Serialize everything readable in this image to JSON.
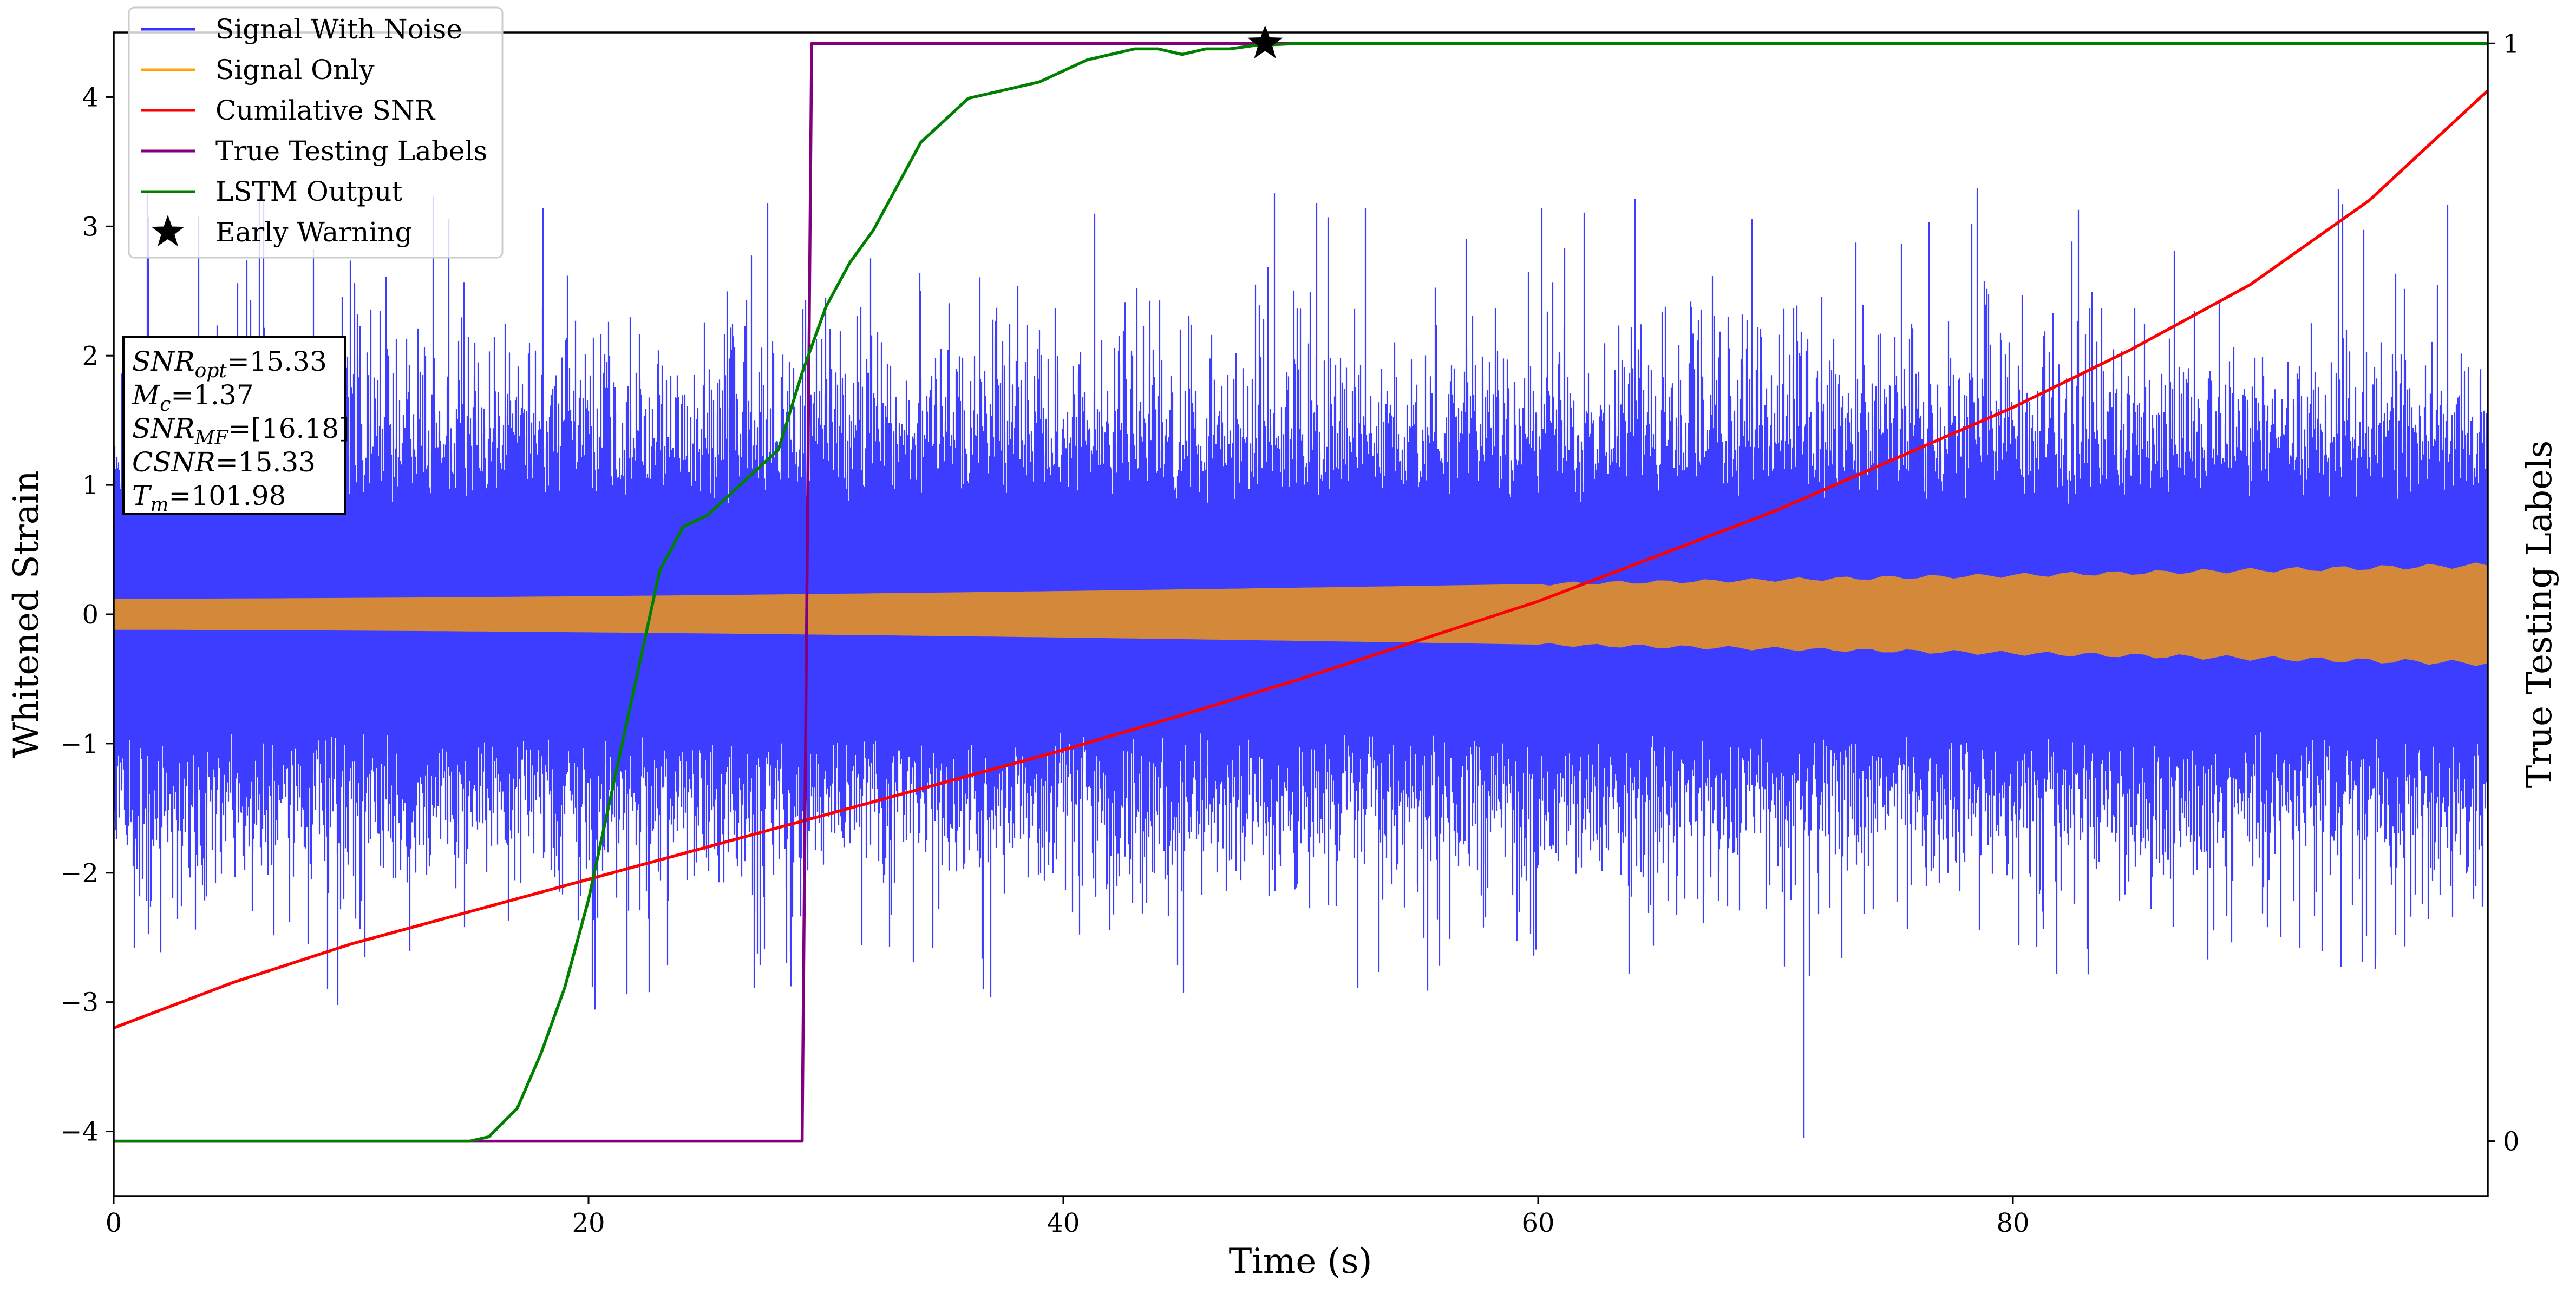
{
  "chart_data": {
    "type": "line",
    "xlabel": "Time (s)",
    "ylabel": "Whitened Strain",
    "ylabel_right": "True Testing Labels",
    "xlim": [
      0,
      100
    ],
    "ylim": [
      -4.5,
      4.5
    ],
    "ylim_right": [
      -0.05,
      1.01
    ],
    "x_ticks": [
      0,
      20,
      40,
      60,
      80
    ],
    "y_ticks": [
      -4,
      -3,
      -2,
      -1,
      0,
      1,
      2,
      3,
      4
    ],
    "y_ticks_right": [
      0,
      1
    ],
    "legend_position": "upper-left",
    "series": [
      {
        "name": "Signal With Noise",
        "color": "#3333ff",
        "axis": "left",
        "description_type": "noise",
        "envelope_center": 0,
        "typical_amplitude": [
          -1.6,
          1.5
        ],
        "extremes": [
          -4.05,
          3.3
        ]
      },
      {
        "name": "Signal Only",
        "color": "#ffa500",
        "axis": "left",
        "description_type": "chirp",
        "amplitude_start": 0.12,
        "amplitude_end": 0.38
      },
      {
        "name": "Cumilative SNR",
        "color": "#ff0000",
        "axis": "left",
        "x": [
          0,
          5,
          10,
          15,
          20,
          25,
          30,
          35,
          40,
          45,
          50,
          55,
          60,
          65,
          70,
          75,
          80,
          85,
          90,
          95,
          100
        ],
        "y": [
          -3.2,
          -2.85,
          -2.55,
          -2.3,
          -2.05,
          -1.8,
          -1.55,
          -1.3,
          -1.05,
          -0.78,
          -0.5,
          -0.2,
          0.1,
          0.45,
          0.8,
          1.2,
          1.6,
          2.05,
          2.55,
          3.2,
          4.05
        ]
      },
      {
        "name": "True Testing Labels",
        "color": "#800080",
        "axis": "right",
        "x": [
          0,
          29.0,
          29.4,
          100
        ],
        "y": [
          0,
          0,
          1,
          1
        ]
      },
      {
        "name": "LSTM Output",
        "color": "#008000",
        "axis": "right",
        "x": [
          0,
          15,
          15.8,
          17,
          18,
          19,
          20,
          21,
          22,
          23,
          24,
          25,
          26,
          27,
          28,
          29,
          30,
          31,
          32,
          33,
          34,
          35,
          36,
          37,
          38,
          39,
          40,
          41,
          42,
          43,
          44,
          45,
          46,
          47,
          48,
          49,
          50,
          55,
          60,
          100
        ],
        "y": [
          0,
          0,
          0.004,
          0.03,
          0.08,
          0.14,
          0.22,
          0.32,
          0.42,
          0.52,
          0.56,
          0.57,
          0.59,
          0.61,
          0.63,
          0.7,
          0.76,
          0.8,
          0.83,
          0.87,
          0.91,
          0.93,
          0.95,
          0.955,
          0.96,
          0.965,
          0.975,
          0.985,
          0.99,
          0.995,
          0.995,
          0.99,
          0.995,
          0.995,
          0.998,
          0.999,
          1.0,
          1.0,
          1.0,
          1.0
        ]
      }
    ],
    "markers": [
      {
        "name": "Early Warning",
        "symbol": "star",
        "color": "#000000",
        "axis": "right",
        "x": 48.5,
        "y": 1.0
      }
    ],
    "textbox": {
      "lines": [
        {
          "base": "SNR",
          "sub": "opt",
          "rest": "=15.33"
        },
        {
          "base": "M",
          "sub": "c",
          "rest": "=1.37"
        },
        {
          "base": "SNR",
          "sub": "MF",
          "rest": "=[16.18]"
        },
        {
          "base": "CSNR",
          "sub": "",
          "rest": "=15.33"
        },
        {
          "base": "T",
          "sub": "m",
          "rest": "=101.98"
        }
      ]
    }
  }
}
